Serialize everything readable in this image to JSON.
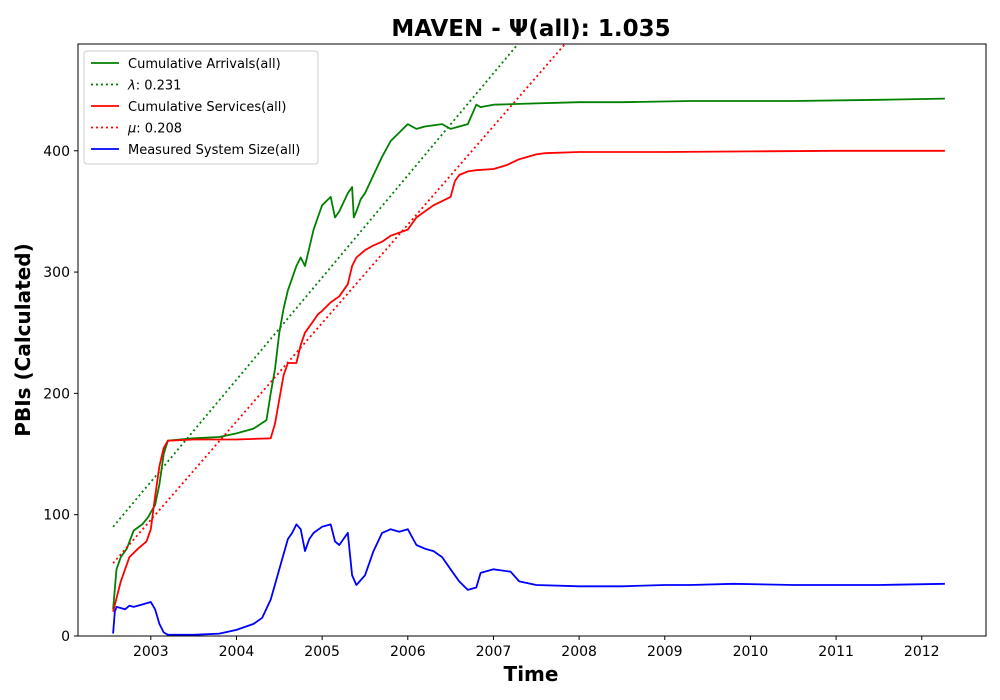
{
  "chart_data": {
    "type": "line",
    "title": "MAVEN -  Ψ(all): 1.035",
    "xlabel": "Time",
    "ylabel": "PBIs (Calculated)",
    "xlim": [
      2002.15,
      2012.75
    ],
    "ylim": [
      0,
      488
    ],
    "x_ticks": [
      2003,
      2004,
      2005,
      2006,
      2007,
      2008,
      2009,
      2010,
      2011,
      2012
    ],
    "y_ticks": [
      0,
      100,
      200,
      300,
      400
    ],
    "grid": false,
    "legend_position": "upper-left",
    "series": [
      {
        "name": "Cumulative Arrivals(all)",
        "color": "#008000",
        "style": "solid",
        "x": [
          2002.56,
          2002.6,
          2002.65,
          2002.72,
          2002.8,
          2002.9,
          2002.97,
          2003.0,
          2003.05,
          2003.1,
          2003.15,
          2003.2,
          2003.5,
          2003.8,
          2004.0,
          2004.2,
          2004.35,
          2004.4,
          2004.45,
          2004.5,
          2004.55,
          2004.6,
          2004.65,
          2004.7,
          2004.75,
          2004.8,
          2004.85,
          2004.9,
          2004.95,
          2005.0,
          2005.1,
          2005.15,
          2005.2,
          2005.3,
          2005.35,
          2005.37,
          2005.4,
          2005.45,
          2005.5,
          2005.6,
          2005.7,
          2005.8,
          2005.9,
          2006.0,
          2006.1,
          2006.2,
          2006.4,
          2006.5,
          2006.6,
          2006.7,
          2006.8,
          2006.85,
          2007.0,
          2007.5,
          2008.0,
          2008.5,
          2009.3,
          2009.8,
          2010.5,
          2011.5,
          2012.27
        ],
        "y": [
          22,
          55,
          65,
          72,
          87,
          92,
          98,
          102,
          108,
          125,
          150,
          161,
          163,
          164,
          167,
          171,
          178,
          200,
          220,
          250,
          270,
          285,
          295,
          305,
          312,
          305,
          320,
          335,
          345,
          355,
          362,
          345,
          350,
          365,
          370,
          345,
          350,
          360,
          365,
          380,
          395,
          408,
          415,
          422,
          418,
          420,
          422,
          418,
          420,
          422,
          438,
          436,
          438,
          439,
          440,
          440,
          441,
          441,
          441,
          442,
          443
        ]
      },
      {
        "name": "λ: 0.231",
        "legend_math_symbol": "λ",
        "legend_value": ": 0.231",
        "color": "#008000",
        "style": "dotted",
        "x": [
          2002.56,
          2007.31
        ],
        "y": [
          90,
          490
        ]
      },
      {
        "name": "Cumulative Services(all)",
        "color": "#ff0000",
        "style": "solid",
        "x": [
          2002.56,
          2002.65,
          2002.75,
          2002.85,
          2002.95,
          2003.0,
          2003.05,
          2003.1,
          2003.15,
          2003.2,
          2003.5,
          2004.0,
          2004.4,
          2004.45,
          2004.5,
          2004.55,
          2004.6,
          2004.7,
          2004.75,
          2004.8,
          2004.85,
          2004.9,
          2004.95,
          2005.0,
          2005.1,
          2005.2,
          2005.3,
          2005.35,
          2005.4,
          2005.5,
          2005.6,
          2005.7,
          2005.8,
          2006.0,
          2006.1,
          2006.2,
          2006.3,
          2006.5,
          2006.55,
          2006.6,
          2006.7,
          2006.8,
          2007.0,
          2007.15,
          2007.3,
          2007.5,
          2007.6,
          2008.0,
          2009.0,
          2010.0,
          2011.0,
          2012.27
        ],
        "y": [
          20,
          45,
          65,
          72,
          78,
          88,
          115,
          140,
          155,
          161,
          162,
          162,
          163,
          175,
          195,
          215,
          225,
          225,
          240,
          250,
          255,
          260,
          265,
          268,
          275,
          280,
          290,
          305,
          312,
          318,
          322,
          325,
          330,
          335,
          345,
          350,
          355,
          362,
          375,
          380,
          383,
          384,
          385,
          388,
          393,
          397,
          398,
          399,
          399,
          399.5,
          400,
          400
        ]
      },
      {
        "name": "μ: 0.208",
        "legend_math_symbol": "μ",
        "legend_value": ": 0.208",
        "color": "#ff0000",
        "style": "dotted",
        "x": [
          2002.56,
          2007.86
        ],
        "y": [
          60,
          490
        ]
      },
      {
        "name": "Measured System Size(all)",
        "color": "#0000ff",
        "style": "solid",
        "x": [
          2002.56,
          2002.58,
          2002.6,
          2002.7,
          2002.75,
          2002.8,
          2002.9,
          2003.0,
          2003.05,
          2003.1,
          2003.15,
          2003.2,
          2003.5,
          2003.8,
          2004.0,
          2004.2,
          2004.3,
          2004.4,
          2004.5,
          2004.6,
          2004.65,
          2004.7,
          2004.75,
          2004.8,
          2004.85,
          2004.9,
          2005.0,
          2005.1,
          2005.15,
          2005.2,
          2005.3,
          2005.35,
          2005.4,
          2005.5,
          2005.6,
          2005.7,
          2005.8,
          2005.9,
          2006.0,
          2006.1,
          2006.2,
          2006.3,
          2006.4,
          2006.5,
          2006.6,
          2006.7,
          2006.8,
          2006.85,
          2007.0,
          2007.1,
          2007.2,
          2007.3,
          2007.5,
          2008.0,
          2008.5,
          2009.0,
          2009.3,
          2009.8,
          2010.5,
          2011.5,
          2012.27
        ],
        "y": [
          2,
          20,
          24,
          22,
          25,
          24,
          26,
          28,
          22,
          10,
          3,
          1,
          1,
          2,
          5,
          10,
          15,
          30,
          55,
          80,
          85,
          92,
          88,
          70,
          80,
          85,
          90,
          92,
          78,
          75,
          85,
          50,
          42,
          50,
          70,
          85,
          88,
          86,
          88,
          75,
          72,
          70,
          65,
          55,
          45,
          38,
          40,
          52,
          55,
          54,
          53,
          45,
          42,
          41,
          41,
          42,
          42,
          43,
          42,
          42,
          43
        ]
      }
    ]
  }
}
